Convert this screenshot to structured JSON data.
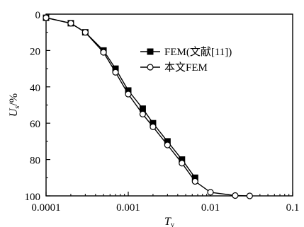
{
  "chart_data": {
    "type": "line",
    "x_scale": "log",
    "y_inverted": true,
    "xlim": [
      0.0001,
      0.1
    ],
    "ylim": [
      0,
      100
    ],
    "x_ticks": [
      0.0001,
      0.001,
      0.01,
      0.1
    ],
    "x_tick_labels": [
      "0.0001",
      "0.001",
      "0.01",
      "0.1"
    ],
    "y_ticks": [
      0,
      20,
      40,
      60,
      80,
      100
    ],
    "y_tick_labels": [
      "0",
      "20",
      "40",
      "60",
      "80",
      "100"
    ],
    "xlabel": "T",
    "xlabel_sub": "v",
    "ylabel": "U",
    "ylabel_sub": "s",
    "ylabel_suffix": "/%",
    "legend_position": "upper-right",
    "grid": false,
    "series": [
      {
        "name": "FEM(文献[11])",
        "marker": "square-filled",
        "x": [
          0.0001,
          0.0002,
          0.0003,
          0.0005,
          0.0007,
          0.001,
          0.0015,
          0.002,
          0.003,
          0.0045,
          0.0065
        ],
        "y": [
          2,
          5,
          10,
          20,
          30,
          42,
          52,
          60,
          70,
          80,
          90
        ]
      },
      {
        "name": "本文FEM",
        "marker": "circle-open",
        "x": [
          0.0001,
          0.0002,
          0.0003,
          0.0005,
          0.0007,
          0.001,
          0.0015,
          0.002,
          0.003,
          0.0045,
          0.0065,
          0.01,
          0.02,
          0.03
        ],
        "y": [
          2,
          5,
          10,
          21,
          32,
          44,
          55,
          62,
          72,
          82,
          92,
          98,
          99.8,
          100
        ]
      }
    ]
  }
}
